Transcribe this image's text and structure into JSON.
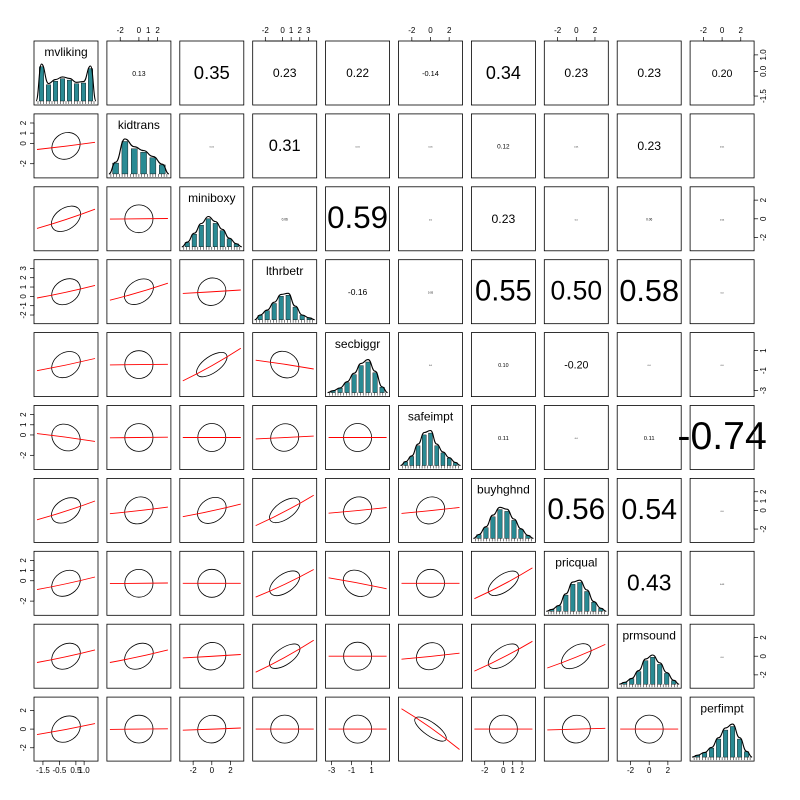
{
  "chart_data": {
    "type": "scatterplot-matrix",
    "title": "",
    "variables": [
      "mvliking",
      "kidtrans",
      "miniboxy",
      "lthrbetr",
      "secbiggr",
      "safeimpt",
      "buyhghnd",
      "pricqual",
      "prmsound",
      "perfimpt"
    ],
    "correlations": [
      [
        null,
        0.13,
        0.35,
        0.23,
        0.22,
        -0.14,
        0.34,
        0.23,
        0.23,
        0.2
      ],
      [
        null,
        null,
        0.01,
        0.31,
        0.01,
        0.01,
        0.12,
        0.01,
        0.23,
        0.01
      ],
      [
        null,
        null,
        null,
        0.06,
        0.59,
        0.0,
        0.23,
        0.0,
        0.06,
        0.04
      ],
      [
        null,
        null,
        null,
        null,
        -0.16,
        0.05,
        0.55,
        0.5,
        0.58,
        0.0
      ],
      [
        null,
        null,
        null,
        null,
        null,
        0.0,
        0.1,
        -0.2,
        0.0,
        0.0
      ],
      [
        null,
        null,
        null,
        null,
        null,
        null,
        0.11,
        0.0,
        0.11,
        -0.74
      ],
      [
        null,
        null,
        null,
        null,
        null,
        null,
        null,
        0.56,
        0.54,
        0.0
      ],
      [
        null,
        null,
        null,
        null,
        null,
        null,
        null,
        null,
        0.43,
        0.03
      ],
      [
        null,
        null,
        null,
        null,
        null,
        null,
        null,
        null,
        null,
        0.0
      ]
    ],
    "correlation_labels": [
      [
        "0.13",
        "0.35",
        "0.23",
        "0.22",
        "-0.14",
        "0.34",
        "0.23",
        "0.23",
        "0.20"
      ],
      [
        "0.01",
        "0.31",
        "0.01",
        "0.01",
        "0.12",
        "0.01",
        "0.23",
        "0.01"
      ],
      [
        "0.06",
        "0.59",
        "0.0",
        "0.23",
        "0.0",
        "0.06",
        "0.04"
      ],
      [
        "-0.16",
        "0.05",
        "0.55",
        "0.50",
        "0.58",
        "0.0"
      ],
      [
        "0.0",
        "0.10",
        "-0.20",
        "0.0",
        "0.0"
      ],
      [
        "0.11",
        "0.0",
        "0.11",
        "-0.74"
      ],
      [
        "0.56",
        "0.54",
        "0.0"
      ],
      [
        "0.43",
        "0.03"
      ],
      [
        "0.0"
      ]
    ],
    "loess_slopes": [
      [
        0,
        0.13,
        0.35,
        0.23,
        0.22,
        -0.14,
        0.34,
        0.23,
        0.23,
        0.2
      ],
      [
        0.13,
        0,
        0.01,
        0.31,
        0.01,
        0.01,
        0.12,
        0.01,
        0.23,
        0.01
      ],
      [
        0.35,
        0.01,
        0,
        0.06,
        0.59,
        0.0,
        0.23,
        0.0,
        0.06,
        0.04
      ],
      [
        0.23,
        0.31,
        0.06,
        0,
        -0.16,
        0.05,
        0.55,
        0.5,
        0.58,
        0.0
      ],
      [
        0.22,
        0.01,
        0.59,
        -0.16,
        0,
        0.0,
        0.1,
        -0.2,
        0.0,
        0.0
      ],
      [
        -0.14,
        0.01,
        0.0,
        0.05,
        0.0,
        0,
        0.11,
        0.0,
        0.11,
        -0.74
      ],
      [
        0.34,
        0.12,
        0.23,
        0.55,
        0.1,
        0.11,
        0,
        0.56,
        0.54,
        0.0
      ],
      [
        0.23,
        0.01,
        0.0,
        0.5,
        -0.2,
        0.0,
        0.56,
        0,
        0.43,
        0.03
      ],
      [
        0.23,
        0.23,
        0.06,
        0.58,
        0.0,
        0.11,
        0.54,
        0.43,
        0,
        0.0
      ],
      [
        0.2,
        0.01,
        0.04,
        0.0,
        0.0,
        -0.74,
        0.0,
        0.03,
        0.0,
        0
      ]
    ],
    "histograms": {
      "mvliking": [
        0.95,
        0.45,
        0.55,
        0.62,
        0.58,
        0.48,
        0.5,
        0.9
      ],
      "kidtrans": [
        0.3,
        0.9,
        0.7,
        0.6,
        0.45,
        0.25
      ],
      "miniboxy": [
        0.12,
        0.35,
        0.6,
        0.78,
        0.65,
        0.45,
        0.22,
        0.08
      ],
      "lthrbetr": [
        0.12,
        0.25,
        0.45,
        0.65,
        0.68,
        0.35,
        0.12,
        0.05
      ],
      "secbiggr": [
        0.05,
        0.12,
        0.28,
        0.5,
        0.75,
        0.85,
        0.55,
        0.15
      ],
      "safeimpt": [
        0.1,
        0.25,
        0.55,
        0.85,
        0.9,
        0.55,
        0.35,
        0.2,
        0.08
      ],
      "buyhghnd": [
        0.1,
        0.3,
        0.6,
        0.8,
        0.75,
        0.5,
        0.25,
        0.08
      ],
      "pricqual": [
        0.05,
        0.15,
        0.45,
        0.75,
        0.8,
        0.55,
        0.25,
        0.08
      ],
      "prmsound": [
        0.05,
        0.15,
        0.35,
        0.65,
        0.75,
        0.55,
        0.3,
        0.1
      ],
      "perfimpt": [
        0.05,
        0.12,
        0.25,
        0.5,
        0.75,
        0.85,
        0.5,
        0.15
      ]
    },
    "axes": {
      "top": [
        {
          "column": 1,
          "ticks": [
            "-2",
            "0",
            "1",
            "2"
          ],
          "values": [
            -2,
            0,
            1,
            2
          ],
          "range": [
            -3,
            3
          ]
        },
        {
          "column": 3,
          "ticks": [
            "-2",
            "0",
            "1",
            "2",
            "3"
          ],
          "values": [
            -2,
            0,
            1,
            2,
            3
          ],
          "range": [
            -3,
            3.5
          ]
        },
        {
          "column": 5,
          "ticks": [
            "-2",
            "0",
            "2"
          ],
          "values": [
            -2,
            0,
            2
          ],
          "range": [
            -3,
            3
          ]
        },
        {
          "column": 7,
          "ticks": [
            "-2",
            "0",
            "2"
          ],
          "values": [
            -2,
            0,
            2
          ],
          "range": [
            -3,
            3
          ]
        },
        {
          "column": 9,
          "ticks": [
            "-2",
            "0",
            "2"
          ],
          "values": [
            -2,
            0,
            2
          ],
          "range": [
            -3,
            3
          ]
        }
      ],
      "bottom": [
        {
          "column": 0,
          "ticks": [
            "-1.5",
            "-0.5",
            "0.5",
            "1.0"
          ],
          "values": [
            -1.5,
            -0.5,
            0.5,
            1.0
          ],
          "range": [
            -1.8,
            1.6
          ]
        },
        {
          "column": 2,
          "ticks": [
            "-2",
            "0",
            "2"
          ],
          "values": [
            -2,
            0,
            2
          ],
          "range": [
            -3,
            3
          ]
        },
        {
          "column": 4,
          "ticks": [
            "-3",
            "-1",
            "1"
          ],
          "values": [
            -3,
            -1,
            1
          ],
          "range": [
            -3.2,
            2.4
          ]
        },
        {
          "column": 6,
          "ticks": [
            "-2",
            "0",
            "1",
            "2"
          ],
          "values": [
            -2,
            0,
            1,
            2
          ],
          "range": [
            -3,
            3
          ]
        },
        {
          "column": 8,
          "ticks": [
            "-2",
            "0",
            "2"
          ],
          "values": [
            -2,
            0,
            2
          ],
          "range": [
            -3,
            3
          ]
        }
      ],
      "left": [
        {
          "row": 1,
          "ticks": [
            "-2",
            "0",
            "1",
            "2"
          ],
          "values": [
            -2,
            0,
            1,
            2
          ],
          "range": [
            -3,
            2.5
          ]
        },
        {
          "row": 3,
          "ticks": [
            "-2",
            "-1",
            "0",
            "1",
            "2",
            "3"
          ],
          "values": [
            -2,
            -1,
            0,
            1,
            2,
            3
          ],
          "range": [
            -2.5,
            3.5
          ]
        },
        {
          "row": 5,
          "ticks": [
            "-2",
            "0",
            "1",
            "2"
          ],
          "values": [
            -2,
            0,
            1,
            2
          ],
          "range": [
            -3,
            2.5
          ]
        },
        {
          "row": 7,
          "ticks": [
            "-2",
            "0",
            "1",
            "2"
          ],
          "values": [
            -2,
            0,
            1,
            2
          ],
          "range": [
            -3,
            2.5
          ]
        },
        {
          "row": 9,
          "ticks": [
            "-2",
            "0",
            "2"
          ],
          "values": [
            -2,
            0,
            2
          ],
          "range": [
            -3,
            3
          ]
        }
      ],
      "right": [
        {
          "row": 0,
          "ticks": [
            "-1.5",
            "0.0",
            "1.0"
          ],
          "values": [
            -1.5,
            0.0,
            1.0
          ],
          "range": [
            -1.8,
            1.6
          ]
        },
        {
          "row": 2,
          "ticks": [
            "-2",
            "0",
            "2"
          ],
          "values": [
            -2,
            0,
            2
          ],
          "range": [
            -3,
            3
          ]
        },
        {
          "row": 4,
          "ticks": [
            "-3",
            "-1",
            "1"
          ],
          "values": [
            -3,
            -1,
            1
          ],
          "range": [
            -3.2,
            2.4
          ]
        },
        {
          "row": 6,
          "ticks": [
            "-2",
            "0",
            "1",
            "2"
          ],
          "values": [
            -2,
            0,
            1,
            2
          ],
          "range": [
            -3,
            3
          ]
        },
        {
          "row": 8,
          "ticks": [
            "-2",
            "0",
            "2"
          ],
          "values": [
            -2,
            0,
            2
          ],
          "range": [
            -3,
            3
          ]
        }
      ]
    },
    "colors": {
      "bar_fill": "#2a8a93",
      "loess": "#ff0000",
      "ellipse": "#000000",
      "density": "#000000"
    }
  }
}
